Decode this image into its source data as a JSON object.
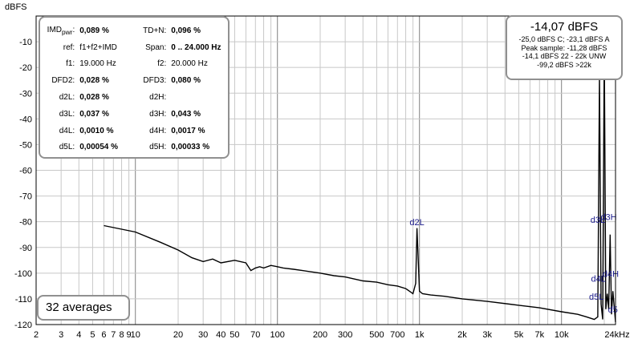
{
  "chart_data": {
    "type": "line",
    "title": "",
    "ylabel": "dBFS",
    "xlabel": "",
    "x_scale": "log",
    "xlim": [
      2,
      24000
    ],
    "ylim": [
      -120,
      0
    ],
    "grid": true,
    "x_tick_labels": [
      "2",
      "3",
      "4",
      "5",
      "6",
      "7",
      "8",
      "9",
      "10",
      "20",
      "30",
      "40",
      "50",
      "70",
      "100",
      "200",
      "300",
      "500",
      "700",
      "1k",
      "2k",
      "3k",
      "5k",
      "7k",
      "10k",
      "24kHz"
    ],
    "y_tick_labels": [
      "-10",
      "-20",
      "-30",
      "-40",
      "-50",
      "-60",
      "-70",
      "-80",
      "-90",
      "-100",
      "-110",
      "-120"
    ],
    "series": [
      {
        "x": [
          6,
          10,
          15,
          20,
          25,
          30,
          35,
          40,
          50,
          60,
          65,
          70,
          75,
          80,
          90,
          100,
          110,
          130,
          150,
          200,
          250,
          300,
          400,
          500,
          600,
          700,
          800,
          850,
          900,
          940,
          960,
          1000,
          1050,
          1200,
          1500,
          2000,
          3000,
          5000,
          7000,
          10000,
          13000,
          15000,
          17000,
          18000,
          18500,
          19000,
          19500,
          20000,
          20500,
          21000,
          21500,
          22000,
          22500,
          23000,
          24000
        ],
        "y": [
          -81.5,
          -84,
          -88,
          -91,
          -94,
          -95.5,
          -94.5,
          -96,
          -95,
          -96,
          -99,
          -98,
          -97.5,
          -98,
          -97,
          -97.5,
          -98,
          -98.5,
          -99,
          -100,
          -101,
          -101.5,
          -103,
          -103.5,
          -104.5,
          -105,
          -106,
          -107,
          -108,
          -104,
          -82.5,
          -107,
          -108,
          -108.5,
          -109,
          -110,
          -111,
          -112.5,
          -113.5,
          -115,
          -116,
          -117,
          -118,
          -117,
          -23,
          -112,
          -118,
          -12,
          -114,
          -108,
          -114,
          -85,
          -116,
          -107,
          -119
        ]
      }
    ],
    "annotations": [
      "d2L",
      "d3L",
      "d3H",
      "d4L",
      "d4H",
      "d5L",
      "d5"
    ]
  },
  "stats": {
    "rows": [
      {
        "k1": "IMD",
        "k1_sub": "pwr",
        "k1_suffix": ":",
        "v1": "0,089 %",
        "k2": "TD+N:",
        "v2": "0,096 %"
      },
      {
        "k1": "ref:",
        "v1": "f1+f2+IMD",
        "k2": "Span:",
        "v2": "0 .. 24.000 Hz"
      },
      {
        "k1": "f1:",
        "v1": "19.000 Hz",
        "k2": "f2:",
        "v2": "20.000 Hz"
      },
      {
        "k1": "DFD2:",
        "v1": "0,028 %",
        "k2": "DFD3:",
        "v2": "0,080 %"
      },
      {
        "k1": "d2L:",
        "v1": "0,028 %",
        "k2": "d2H:",
        "v2": ""
      },
      {
        "k1": "d3L:",
        "v1": "0,037 %",
        "k2": "d3H:",
        "v2": "0,043 %"
      },
      {
        "k1": "d4L:",
        "v1": "0,0010 %",
        "k2": "d4H:",
        "v2": "0,0017 %"
      },
      {
        "k1": "d5L:",
        "v1": "0,00054 %",
        "k2": "d5H:",
        "v2": "0,00033 %"
      }
    ]
  },
  "level": {
    "main": "-14,07 dBFS",
    "lines": [
      "-25,0 dBFS C; -23,1 dBFS A",
      "Peak sample: -11,28 dBFS",
      "-14,1 dBFS 22 - 22k UNW",
      "-99,2 dBFS >22k"
    ]
  },
  "averages": "32 averages",
  "colors": {
    "grid": "#c8c8c8",
    "grid_decade": "#808080",
    "trace": "#000000",
    "marker": "#1a1a8c",
    "panel_border": "#909090"
  }
}
